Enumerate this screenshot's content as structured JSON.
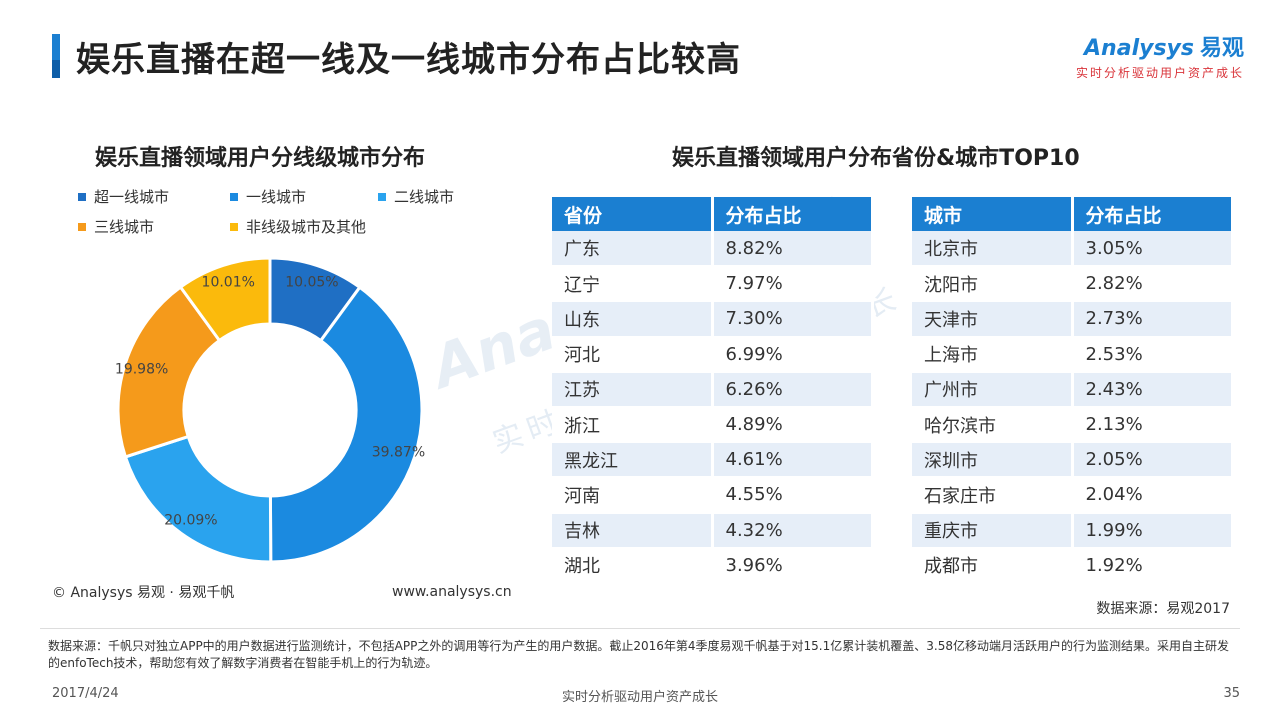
{
  "header": {
    "title": "娱乐直播在超一线及一线城市分布占比较高",
    "logo_en": "Analysys",
    "logo_cn": "易观",
    "logo_slogan": "实时分析驱动用户资产成长"
  },
  "left_chart": {
    "title": "娱乐直播领域用户分线级城市分布"
  },
  "chart_data": {
    "type": "pie",
    "categories": [
      "超一线城市",
      "一线城市",
      "二线城市",
      "三线城市",
      "非线级城市及其他"
    ],
    "values": [
      10.05,
      39.87,
      20.09,
      19.98,
      10.01
    ],
    "labels": [
      "10.05%",
      "39.87%",
      "20.09%",
      "19.98%",
      "10.01%"
    ],
    "colors": [
      "#1f6fc4",
      "#1b8ae0",
      "#2aa3ee",
      "#f59a1b",
      "#fbba0c"
    ],
    "legend_position": "top",
    "title": "娱乐直播领域用户分线级城市分布"
  },
  "right_section": {
    "title": "娱乐直播领域用户分布省份&城市TOP10"
  },
  "province_table": {
    "headers": [
      "省份",
      "分布占比"
    ],
    "rows": [
      [
        "广东",
        "8.82%"
      ],
      [
        "辽宁",
        "7.97%"
      ],
      [
        "山东",
        "7.30%"
      ],
      [
        "河北",
        "6.99%"
      ],
      [
        "江苏",
        "6.26%"
      ],
      [
        "浙江",
        "4.89%"
      ],
      [
        "黑龙江",
        "4.61%"
      ],
      [
        "河南",
        "4.55%"
      ],
      [
        "吉林",
        "4.32%"
      ],
      [
        "湖北",
        "3.96%"
      ]
    ]
  },
  "city_table": {
    "headers": [
      "城市",
      "分布占比"
    ],
    "rows": [
      [
        "北京市",
        "3.05%"
      ],
      [
        "沈阳市",
        "2.82%"
      ],
      [
        "天津市",
        "2.73%"
      ],
      [
        "上海市",
        "2.53%"
      ],
      [
        "广州市",
        "2.43%"
      ],
      [
        "哈尔滨市",
        "2.13%"
      ],
      [
        "深圳市",
        "2.05%"
      ],
      [
        "石家庄市",
        "2.04%"
      ],
      [
        "重庆市",
        "1.99%"
      ],
      [
        "成都市",
        "1.92%"
      ]
    ]
  },
  "watermark": {
    "main": "Analysys 易观",
    "sub": "实时分析驱动用户资产成长"
  },
  "bottom": {
    "copyright": "© Analysys 易观 · 易观千帆",
    "website": "www.analysys.cn",
    "source": "数据来源：易观2017",
    "footnote": "数据来源：千帆只对独立APP中的用户数据进行监测统计，不包括APP之外的调用等行为产生的用户数据。截止2016年第4季度易观千帆基于对15.1亿累计装机覆盖、3.58亿移动端月活跃用户的行为监测结果。采用自主研发的enfoTech技术，帮助您有效了解数字消费者在智能手机上的行为轨迹。"
  },
  "footer": {
    "date": "2017/4/24",
    "center": "实时分析驱动用户资产成长",
    "page": "35"
  }
}
